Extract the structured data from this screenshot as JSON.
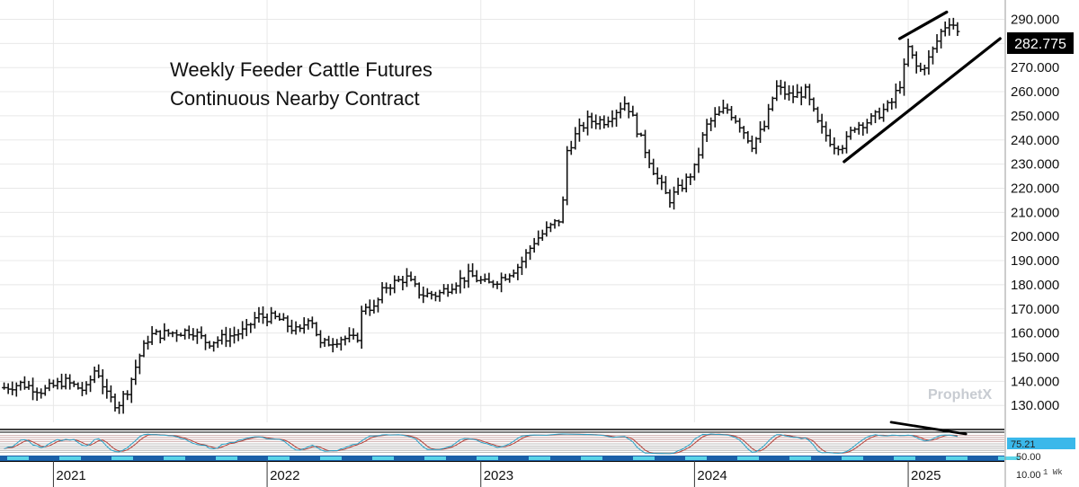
{
  "chart_data": [
    {
      "type": "ohlc",
      "title": [
        "Weekly Feeder Cattle Futures",
        "Continuous Nearby Contract"
      ],
      "watermark": "ProphetX",
      "last_price": "282.775",
      "last_price_value": 282.775,
      "ylim": [
        123,
        298
      ],
      "y_ticks": [
        130,
        140,
        150,
        160,
        170,
        180,
        190,
        200,
        210,
        220,
        230,
        240,
        250,
        260,
        270,
        280,
        290
      ],
      "y_tick_labels": [
        "130.000",
        "140.000",
        "150.000",
        "160.000",
        "170.000",
        "180.000",
        "190.000",
        "200.000",
        "210.000",
        "220.000",
        "230.000",
        "240.000",
        "250.000",
        "260.000",
        "270.000",
        "280.000",
        "290.000"
      ],
      "x_range": [
        2020.75,
        2025.45
      ],
      "x_ticks": [
        2021,
        2022,
        2023,
        2024,
        2025
      ],
      "x_tick_labels": [
        "2021",
        "2022",
        "2023",
        "2024",
        "2025"
      ],
      "timeframe_label": "1 Wk",
      "grid": true,
      "close_path": [
        [
          2020.75,
          137
        ],
        [
          2020.85,
          139
        ],
        [
          2020.95,
          136
        ],
        [
          2021.05,
          140
        ],
        [
          2021.15,
          136
        ],
        [
          2021.2,
          146
        ],
        [
          2021.25,
          134
        ],
        [
          2021.3,
          130
        ],
        [
          2021.35,
          137
        ],
        [
          2021.4,
          150
        ],
        [
          2021.45,
          159
        ],
        [
          2021.55,
          160
        ],
        [
          2021.65,
          161
        ],
        [
          2021.72,
          156
        ],
        [
          2021.8,
          158
        ],
        [
          2021.9,
          161
        ],
        [
          2021.95,
          167
        ],
        [
          2022.05,
          166
        ],
        [
          2022.1,
          163
        ],
        [
          2022.15,
          160
        ],
        [
          2022.2,
          168
        ],
        [
          2022.25,
          155
        ],
        [
          2022.35,
          158
        ],
        [
          2022.42,
          157
        ],
        [
          2022.45,
          172
        ],
        [
          2022.5,
          170
        ],
        [
          2022.55,
          179
        ],
        [
          2022.65,
          183
        ],
        [
          2022.72,
          176
        ],
        [
          2022.8,
          176
        ],
        [
          2022.88,
          181
        ],
        [
          2022.95,
          184
        ],
        [
          2023.03,
          180
        ],
        [
          2023.1,
          183
        ],
        [
          2023.18,
          188
        ],
        [
          2023.25,
          198
        ],
        [
          2023.3,
          202
        ],
        [
          2023.38,
          208
        ],
        [
          2023.4,
          235
        ],
        [
          2023.45,
          243
        ],
        [
          2023.5,
          248
        ],
        [
          2023.58,
          248
        ],
        [
          2023.68,
          256
        ],
        [
          2023.75,
          240
        ],
        [
          2023.82,
          225
        ],
        [
          2023.88,
          215
        ],
        [
          2023.95,
          222
        ],
        [
          2024.0,
          228
        ],
        [
          2024.05,
          245
        ],
        [
          2024.1,
          250
        ],
        [
          2024.15,
          253
        ],
        [
          2024.2,
          248
        ],
        [
          2024.27,
          238
        ],
        [
          2024.33,
          246
        ],
        [
          2024.38,
          262
        ],
        [
          2024.45,
          258
        ],
        [
          2024.52,
          260
        ],
        [
          2024.58,
          246
        ],
        [
          2024.65,
          238
        ],
        [
          2024.7,
          238
        ],
        [
          2024.75,
          246
        ],
        [
          2024.82,
          248
        ],
        [
          2024.88,
          252
        ],
        [
          2024.92,
          255
        ],
        [
          2024.97,
          265
        ],
        [
          2025.0,
          278
        ],
        [
          2025.05,
          268
        ],
        [
          2025.1,
          274
        ],
        [
          2025.16,
          286
        ],
        [
          2025.2,
          290
        ],
        [
          2025.24,
          282.775
        ]
      ],
      "trendlines": [
        {
          "from": [
            2024.7,
            231
          ],
          "to": [
            2025.43,
            282
          ]
        },
        {
          "from": [
            2024.96,
            282
          ],
          "to": [
            2025.18,
            293
          ]
        }
      ],
      "oscillator": {
        "ylim": [
          0,
          100
        ],
        "levels": [
          10,
          20,
          30,
          40,
          50,
          60,
          70,
          80,
          90
        ],
        "level_labels": [
          "10.00",
          "50.00"
        ],
        "current_value_label": "75.21",
        "fast_line_color": "#2aa3c8",
        "slow_line_color": "#b5423a",
        "trendline": {
          "from": [
            2024.92,
            92
          ],
          "to": [
            2025.27,
            75
          ]
        }
      }
    }
  ],
  "colors": {
    "bars": "#111111",
    "grid": "#e8e8e8",
    "price_box": "#000000",
    "price_box_text": "#ffffff",
    "osc_label_box": "#3ab8ea",
    "osc_upper_band": "#c7a0a0",
    "osc_lower_band": "#a9a9a9",
    "timeline_dark": "#1a5fa8",
    "timeline_light": "#5ad4e8",
    "watermark": "#c8ccd2"
  }
}
